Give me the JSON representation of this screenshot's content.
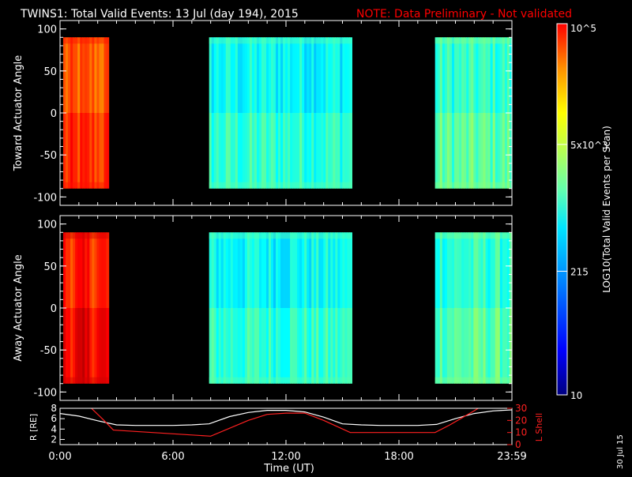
{
  "title": "TWINS1: Total Valid Events: 13 Jul (day 194), 2015",
  "note": "NOTE: Data Preliminary - Not validated",
  "date_stamp": "30 Jul 15",
  "colors": {
    "background": "#000000",
    "axis": "#ffffff",
    "note": "#ff0000",
    "r_line": "#ffffff",
    "l_shell_line": "#ff2020"
  },
  "colorbar": {
    "label": "LOG10(Total Valid Events per Scan)",
    "ticks": [
      {
        "label": "10",
        "value": 10
      },
      {
        "label": "215",
        "value": 215
      },
      {
        "label": "5x10^3",
        "value": 5000
      },
      {
        "label": "10^5",
        "value": 100000
      }
    ]
  },
  "chart_data": [
    {
      "type": "heatmap",
      "panel": "top",
      "ylabel": "Toward Actuator Angle",
      "ylim": [
        -110,
        110
      ],
      "yticks": [
        100,
        50,
        0,
        -50,
        -100
      ],
      "xlim_hours": [
        0,
        24
      ],
      "angle_range": [
        -90,
        90
      ],
      "data_intervals": [
        {
          "start": "00:10",
          "end": "02:35",
          "log_level": 0.8
        },
        {
          "start": "07:55",
          "end": "15:30",
          "log_level": 0.4
        },
        {
          "start": "19:55",
          "end": "24:00",
          "log_level": 0.44
        }
      ]
    },
    {
      "type": "heatmap",
      "panel": "middle",
      "ylabel": "Away Actuator Angle",
      "ylim": [
        -110,
        110
      ],
      "yticks": [
        100,
        50,
        0,
        -50,
        -100
      ],
      "xlim_hours": [
        0,
        24
      ],
      "angle_range": [
        -90,
        90
      ],
      "data_intervals": [
        {
          "start": "00:10",
          "end": "02:35",
          "log_level": 0.86
        },
        {
          "start": "07:55",
          "end": "15:30",
          "log_level": 0.4
        },
        {
          "start": "19:55",
          "end": "24:00",
          "log_level": 0.44
        }
      ]
    },
    {
      "type": "line",
      "panel": "orbit",
      "ylabel_left": "R [RE]",
      "ylabel_right": "L Shell",
      "ylim_left": [
        1,
        8
      ],
      "yticks_left": [
        8,
        6,
        4,
        2
      ],
      "ylim_right": [
        0,
        30
      ],
      "yticks_right": [
        30,
        20,
        10,
        0
      ],
      "series": [
        {
          "name": "R [RE]",
          "axis": "left",
          "x": [
            "00:00",
            "01:00",
            "02:00",
            "03:00",
            "04:00",
            "05:00",
            "06:00",
            "07:00",
            "07:55",
            "09:00",
            "10:00",
            "11:00",
            "12:00",
            "13:00",
            "14:00",
            "15:00",
            "16:00",
            "17:00",
            "18:00",
            "19:00",
            "20:00",
            "21:00",
            "22:00",
            "23:00",
            "23:59"
          ],
          "values": [
            7.0,
            6.5,
            5.6,
            4.8,
            4.7,
            4.7,
            4.7,
            4.8,
            5.0,
            6.4,
            7.2,
            7.6,
            7.6,
            7.3,
            6.3,
            5.0,
            4.8,
            4.7,
            4.7,
            4.7,
            4.9,
            6.0,
            7.0,
            7.5,
            7.7
          ]
        },
        {
          "name": "L Shell",
          "axis": "right",
          "x": [
            "01:20",
            "01:40",
            "02:20",
            "02:50",
            "08:00",
            "10:00",
            "11:00",
            "12:00",
            "13:00",
            "14:00",
            "15:25",
            "19:55",
            "20:40",
            "21:20",
            "22:00",
            "22:25"
          ],
          "values": [
            32,
            30,
            20,
            12,
            7,
            20,
            25,
            26,
            26,
            20,
            10,
            10,
            16,
            22,
            28,
            32
          ]
        }
      ],
      "xlabel": "Time (UT)",
      "xticks": [
        "0:00",
        "6:00",
        "12:00",
        "18:00",
        "23:59"
      ]
    }
  ]
}
